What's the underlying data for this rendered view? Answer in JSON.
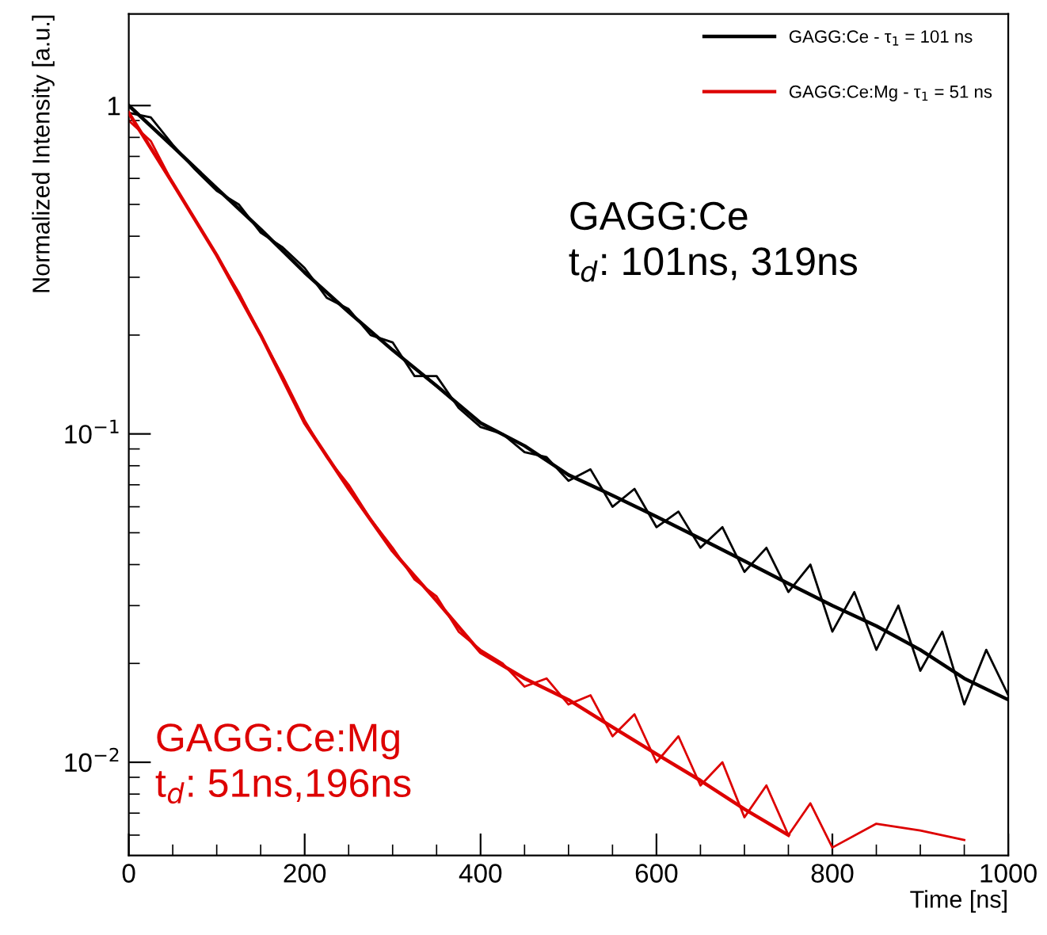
{
  "chart_data": {
    "type": "line",
    "xlabel": "Time [ns]",
    "ylabel": "Normalized Intensity [a.u.]",
    "log": "y",
    "xlim": [
      0,
      1000
    ],
    "ylim": [
      0.0052,
      1.9
    ],
    "xticks": [
      0,
      200,
      400,
      600,
      800,
      1000
    ],
    "yticks": [
      {
        "value": 0.01,
        "label": "10$^{−2}$"
      },
      {
        "value": 0.1,
        "label": "10$^{−1}$"
      },
      1
    ],
    "grid": false,
    "legend": "top right",
    "line_style": "solid",
    "marker": "none",
    "annotations": [
      "GAGG:Ce\nt$_{d}$: 101ns, 319ns",
      "GAGG:Ce:Mg\nt$_{d}$: 51ns,196ns"
    ],
    "series": [
      {
        "color": "#000000",
        "x": [
          0,
          25,
          50,
          75,
          100,
          125,
          150,
          175,
          200,
          225,
          250,
          275,
          300,
          325,
          350,
          375,
          400,
          425,
          450,
          475,
          500,
          525,
          550,
          575,
          600,
          625,
          650,
          675,
          700,
          725,
          750,
          775,
          800,
          825,
          850,
          875,
          900,
          925,
          950,
          975,
          1000
        ],
        "values": [
          0.95,
          0.92,
          0.76,
          0.64,
          0.55,
          0.5,
          0.41,
          0.37,
          0.32,
          0.26,
          0.24,
          0.2,
          0.19,
          0.15,
          0.15,
          0.12,
          0.105,
          0.1,
          0.088,
          0.085,
          0.072,
          0.078,
          0.06,
          0.068,
          0.052,
          0.058,
          0.045,
          0.052,
          0.038,
          0.045,
          0.033,
          0.04,
          0.025,
          0.033,
          0.022,
          0.03,
          0.019,
          0.025,
          0.015,
          0.022,
          0.016
        ]
      },
      {
        "color": "#dd0000",
        "x": [
          0,
          25,
          50,
          75,
          100,
          125,
          150,
          175,
          200,
          225,
          250,
          275,
          300,
          325,
          350,
          375,
          400,
          425,
          450,
          475,
          500,
          525,
          550,
          575,
          600,
          625,
          650,
          675,
          700,
          725,
          750,
          775,
          800,
          850,
          900,
          950
        ],
        "values": [
          0.9,
          0.78,
          0.58,
          0.45,
          0.35,
          0.27,
          0.2,
          0.15,
          0.11,
          0.085,
          0.07,
          0.055,
          0.045,
          0.036,
          0.032,
          0.025,
          0.022,
          0.02,
          0.017,
          0.018,
          0.015,
          0.016,
          0.012,
          0.014,
          0.01,
          0.012,
          0.0085,
          0.01,
          0.0068,
          0.0085,
          0.006,
          0.0075,
          0.0055,
          0.0065,
          0.0062,
          0.0058
        ]
      },
      {
        "name": "GAGG:Ce - τ$_{1}$ = 101 ns",
        "color": "#000000",
        "x": [
          0,
          50,
          100,
          150,
          200,
          250,
          300,
          350,
          400,
          450,
          500,
          550,
          600,
          650,
          700,
          750,
          800,
          850,
          900,
          950,
          1000
        ],
        "values": [
          1.0,
          0.75,
          0.56,
          0.42,
          0.31,
          0.235,
          0.18,
          0.14,
          0.108,
          0.092,
          0.075,
          0.065,
          0.056,
          0.048,
          0.041,
          0.035,
          0.03,
          0.026,
          0.022,
          0.018,
          0.0155
        ]
      },
      {
        "name": "GAGG:Ce:Mg - τ$_{1}$ = 51 ns",
        "color": "#dd0000",
        "x": [
          0,
          50,
          100,
          150,
          200,
          250,
          300,
          350,
          400,
          450,
          500,
          550,
          600,
          650,
          700,
          750
        ],
        "values": [
          0.95,
          0.58,
          0.35,
          0.2,
          0.108,
          0.068,
          0.044,
          0.031,
          0.0216,
          0.018,
          0.0155,
          0.0128,
          0.0106,
          0.0088,
          0.0072,
          0.006
        ]
      }
    ]
  }
}
